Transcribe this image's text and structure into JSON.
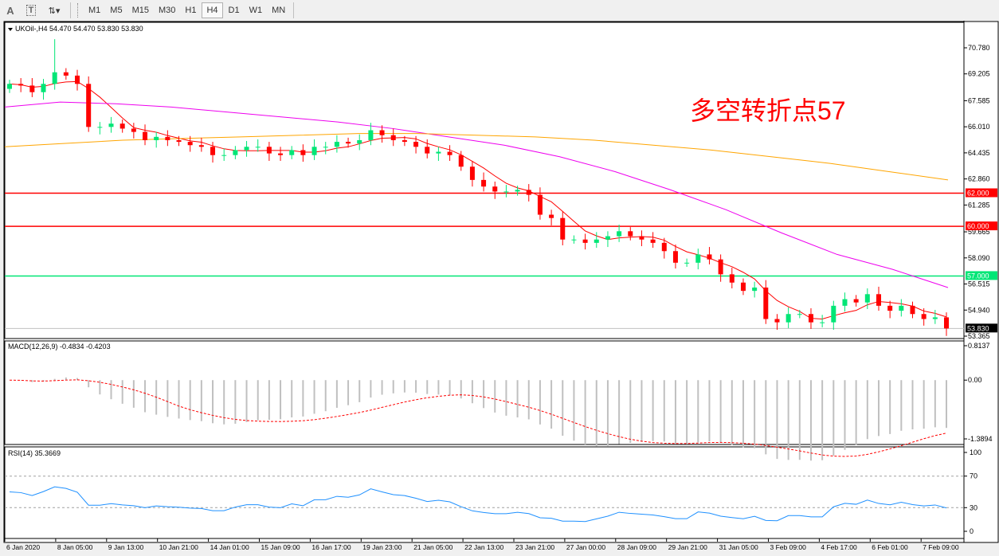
{
  "toolbar": {
    "tools": [
      {
        "label": "A",
        "icon": "text-label-icon"
      },
      {
        "label": "T",
        "icon": "text-box-icon"
      },
      {
        "label": "",
        "icon": "arrows-dropdown-icon"
      }
    ],
    "timeframes": [
      "M1",
      "M5",
      "M15",
      "M30",
      "H1",
      "H4",
      "D1",
      "W1",
      "MN"
    ],
    "active_timeframe": "H4"
  },
  "chart": {
    "header": "UKOil-,H4  54.470 54.470 53.830 53.830",
    "annotation": "多空转折点57",
    "annotation_color": "#ff0000",
    "bull_color": "#00e676",
    "bear_color": "#ff0000",
    "price_axis_ticks": [
      "70.780",
      "69.205",
      "67.585",
      "66.010",
      "64.435",
      "62.860",
      "61.285",
      "59.665",
      "58.090",
      "56.515",
      "54.940",
      "53.365"
    ],
    "levels": [
      {
        "label": "62.000",
        "value": 62.0,
        "color": "#ff0000"
      },
      {
        "label": "60.000",
        "value": 60.0,
        "color": "#ff0000"
      },
      {
        "label": "57.000",
        "value": 57.0,
        "color": "#00e676"
      }
    ],
    "current_price": {
      "label": "53.830",
      "value": 53.83
    },
    "time_labels": [
      "6 Jan 2020",
      "8 Jan 05:00",
      "9 Jan 13:00",
      "10 Jan 21:00",
      "14 Jan 01:00",
      "15 Jan 09:00",
      "16 Jan 17:00",
      "19 Jan 23:00",
      "21 Jan 05:00",
      "22 Jan 13:00",
      "23 Jan 21:00",
      "27 Jan 00:00",
      "28 Jan 09:00",
      "29 Jan 21:00",
      "31 Jan 05:00",
      "3 Feb 09:00",
      "4 Feb 17:00",
      "6 Feb 01:00",
      "7 Feb 09:00"
    ]
  },
  "macd": {
    "header": "MACD(12,26,9) -0.4834 -0.4203",
    "ticks": [
      "0.8137",
      "0.00",
      "-1.3894"
    ]
  },
  "rsi": {
    "header": "RSI(14) 35.3669",
    "ticks": [
      "100",
      "70",
      "30",
      "0"
    ]
  },
  "chart_data": {
    "type": "candlestick",
    "symbol": "UKOil-",
    "timeframe": "H4",
    "ylim": [
      53.365,
      71.5
    ],
    "close": [
      68.6,
      68.5,
      68.1,
      68.6,
      69.3,
      69.1,
      68.6,
      66.0,
      66.0,
      66.2,
      65.9,
      65.7,
      65.2,
      65.4,
      65.2,
      65.1,
      64.9,
      64.8,
      64.3,
      64.3,
      64.6,
      64.8,
      64.8,
      64.4,
      64.3,
      64.6,
      64.3,
      64.8,
      64.8,
      65.1,
      65.0,
      65.2,
      65.8,
      65.5,
      65.2,
      65.1,
      64.8,
      64.4,
      64.5,
      64.3,
      63.6,
      62.8,
      62.4,
      62.1,
      62.1,
      62.2,
      61.9,
      60.7,
      60.5,
      59.2,
      59.2,
      59.0,
      59.2,
      59.4,
      59.7,
      59.4,
      59.2,
      59.0,
      58.5,
      57.8,
      57.8,
      58.3,
      58.0,
      57.1,
      56.6,
      56.1,
      56.3,
      54.4,
      54.2,
      54.7,
      54.7,
      54.2,
      54.2,
      55.2,
      55.6,
      55.4,
      55.9,
      55.2,
      54.9,
      55.2,
      54.7,
      54.4,
      54.5,
      53.83
    ],
    "high_max": 71.3,
    "ma_series": [
      {
        "color": "#ff0000",
        "type": "computed-fast"
      },
      {
        "color": "#ee00ee",
        "values": [
          67.2,
          67.5,
          67.4,
          67.2,
          66.9,
          66.6,
          66.3,
          65.9,
          65.4,
          64.9,
          64.2,
          63.3,
          62.2,
          61.0,
          59.6,
          58.3,
          57.4,
          56.3
        ]
      },
      {
        "color": "#ffa500",
        "values": [
          64.8,
          65.0,
          65.2,
          65.3,
          65.4,
          65.5,
          65.6,
          65.6,
          65.5,
          65.4,
          65.2,
          64.9,
          64.6,
          64.2,
          63.8,
          63.3,
          62.8
        ]
      }
    ],
    "macd_range": [
      -1.3894,
      0.8137
    ],
    "rsi_levels": [
      30,
      70
    ]
  }
}
